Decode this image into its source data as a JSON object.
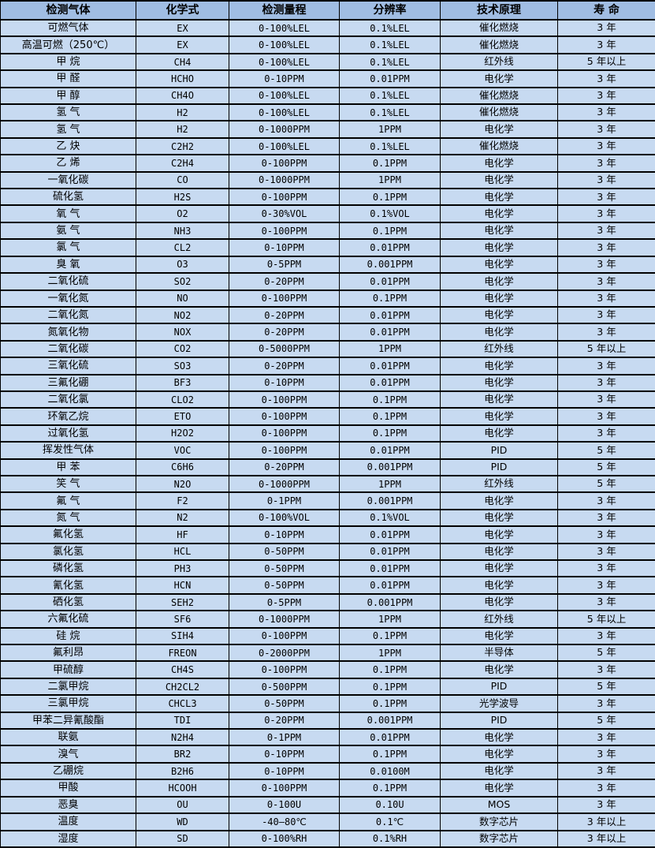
{
  "colors": {
    "header_bg": "#a0bde3",
    "row_bg": "#c7daf1",
    "border": "#000000",
    "text": "#000000"
  },
  "table": {
    "columns": [
      {
        "key": "gas",
        "label": "检测气体"
      },
      {
        "key": "formula",
        "label": "化学式"
      },
      {
        "key": "range",
        "label": "检测量程"
      },
      {
        "key": "resolution",
        "label": "分辨率"
      },
      {
        "key": "principle",
        "label": "技术原理"
      },
      {
        "key": "lifespan",
        "label": "寿 命"
      }
    ],
    "rows": [
      [
        "可燃气体",
        "EX",
        "0-100%LEL",
        "0.1%LEL",
        "催化燃烧",
        "3 年"
      ],
      [
        "高温可燃（250℃）",
        "EX",
        "0-100%LEL",
        "0.1%LEL",
        "催化燃烧",
        "3 年"
      ],
      [
        "甲 烷",
        "CH4",
        "0-100%LEL",
        "0.1%LEL",
        "红外线",
        "5 年以上"
      ],
      [
        "甲 醛",
        "HCHO",
        "0-10PPM",
        "0.01PPM",
        "电化学",
        "3 年"
      ],
      [
        "甲 醇",
        "CH4O",
        "0-100%LEL",
        "0.1%LEL",
        "催化燃烧",
        "3 年"
      ],
      [
        "氢 气",
        "H2",
        "0-100%LEL",
        "0.1%LEL",
        "催化燃烧",
        "3 年"
      ],
      [
        "氢 气",
        "H2",
        "0-1000PPM",
        "1PPM",
        "电化学",
        "3 年"
      ],
      [
        "乙 炔",
        "C2H2",
        "0-100%LEL",
        "0.1%LEL",
        "催化燃烧",
        "3 年"
      ],
      [
        "乙 烯",
        "C2H4",
        "0-100PPM",
        "0.1PPM",
        "电化学",
        "3 年"
      ],
      [
        "一氧化碳",
        "CO",
        "0-1000PPM",
        "1PPM",
        "电化学",
        "3 年"
      ],
      [
        "硫化氢",
        "H2S",
        "0-100PPM",
        "0.1PPM",
        "电化学",
        "3 年"
      ],
      [
        "氧 气",
        "O2",
        "0-30%VOL",
        "0.1%VOL",
        "电化学",
        "3 年"
      ],
      [
        "氨 气",
        "NH3",
        "0-100PPM",
        "0.1PPM",
        "电化学",
        "3 年"
      ],
      [
        "氯 气",
        "CL2",
        "0-10PPM",
        "0.01PPM",
        "电化学",
        "3 年"
      ],
      [
        "臭 氧",
        "O3",
        "0-5PPM",
        "0.001PPM",
        "电化学",
        "3 年"
      ],
      [
        "二氧化硫",
        "SO2",
        "0-20PPM",
        "0.01PPM",
        "电化学",
        "3 年"
      ],
      [
        "一氧化氮",
        "NO",
        "0-100PPM",
        "0.1PPM",
        "电化学",
        "3 年"
      ],
      [
        "二氧化氮",
        "NO2",
        "0-20PPM",
        "0.01PPM",
        "电化学",
        "3 年"
      ],
      [
        "氮氧化物",
        "NOX",
        "0-20PPM",
        "0.01PPM",
        "电化学",
        "3 年"
      ],
      [
        "二氧化碳",
        "CO2",
        "0-5000PPM",
        "1PPM",
        "红外线",
        "5 年以上"
      ],
      [
        "三氧化硫",
        "SO3",
        "0-20PPM",
        "0.01PPM",
        "电化学",
        "3 年"
      ],
      [
        "三氟化硼",
        "BF3",
        "0-10PPM",
        "0.01PPM",
        "电化学",
        "3 年"
      ],
      [
        "二氧化氯",
        "CLO2",
        "0-100PPM",
        "0.1PPM",
        "电化学",
        "3 年"
      ],
      [
        "环氧乙烷",
        "ETO",
        "0-100PPM",
        "0.1PPM",
        "电化学",
        "3 年"
      ],
      [
        "过氧化氢",
        "H2O2",
        "0-100PPM",
        "0.1PPM",
        "电化学",
        "3 年"
      ],
      [
        "挥发性气体",
        "VOC",
        "0-100PPM",
        "0.01PPM",
        "PID",
        "5 年"
      ],
      [
        "甲 苯",
        "C6H6",
        "0-20PPM",
        "0.001PPM",
        "PID",
        "5 年"
      ],
      [
        "笑 气",
        "N2O",
        "0-1000PPM",
        "1PPM",
        "红外线",
        "5 年"
      ],
      [
        "氟 气",
        "F2",
        "0-1PPM",
        "0.001PPM",
        "电化学",
        "3 年"
      ],
      [
        "氮 气",
        "N2",
        "0-100%VOL",
        "0.1%VOL",
        "电化学",
        "3 年"
      ],
      [
        "氟化氢",
        "HF",
        "0-10PPM",
        "0.01PPM",
        "电化学",
        "3 年"
      ],
      [
        "氯化氢",
        "HCL",
        "0-50PPM",
        "0.01PPM",
        "电化学",
        "3 年"
      ],
      [
        "磷化氢",
        "PH3",
        "0-50PPM",
        "0.01PPM",
        "电化学",
        "3 年"
      ],
      [
        "氰化氢",
        "HCN",
        "0-50PPM",
        "0.01PPM",
        "电化学",
        "3 年"
      ],
      [
        "硒化氢",
        "SEH2",
        "0-5PPM",
        "0.001PPM",
        "电化学",
        "3 年"
      ],
      [
        "六氟化硫",
        "SF6",
        "0-1000PPM",
        "1PPM",
        "红外线",
        "5 年以上"
      ],
      [
        "硅 烷",
        "SIH4",
        "0-100PPM",
        "0.1PPM",
        "电化学",
        "3 年"
      ],
      [
        "氟利昂",
        "FREON",
        "0-2000PPM",
        "1PPM",
        "半导体",
        "5 年"
      ],
      [
        "甲硫醇",
        "CH4S",
        "0-100PPM",
        "0.1PPM",
        "电化学",
        "3 年"
      ],
      [
        "二氯甲烷",
        "CH2CL2",
        "0-500PPM",
        "0.1PPM",
        "PID",
        "5 年"
      ],
      [
        "三氯甲烷",
        "CHCL3",
        "0-50PPM",
        "0.1PPM",
        "光学波导",
        "3 年"
      ],
      [
        "甲苯二异氰酸酯",
        "TDI",
        "0-20PPM",
        "0.001PPM",
        "PID",
        "5 年"
      ],
      [
        "联氨",
        "N2H4",
        "0-1PPM",
        "0.01PPM",
        "电化学",
        "3 年"
      ],
      [
        "溴气",
        "BR2",
        "0-10PPM",
        "0.1PPM",
        "电化学",
        "3 年"
      ],
      [
        "乙硼烷",
        "B2H6",
        "0-10PPM",
        "0.0100M",
        "电化学",
        "3 年"
      ],
      [
        "甲酸",
        "HCOOH",
        "0-100PPM",
        "0.1PPM",
        "电化学",
        "3 年"
      ],
      [
        "恶臭",
        "OU",
        "0-100U",
        "0.10U",
        "MOS",
        "3 年"
      ],
      [
        "温度",
        "WD",
        "-40—80℃",
        "0.1℃",
        "数字芯片",
        "3 年以上"
      ],
      [
        "湿度",
        "SD",
        "0-100%RH",
        "0.1%RH",
        "数字芯片",
        "3 年以上"
      ]
    ]
  }
}
